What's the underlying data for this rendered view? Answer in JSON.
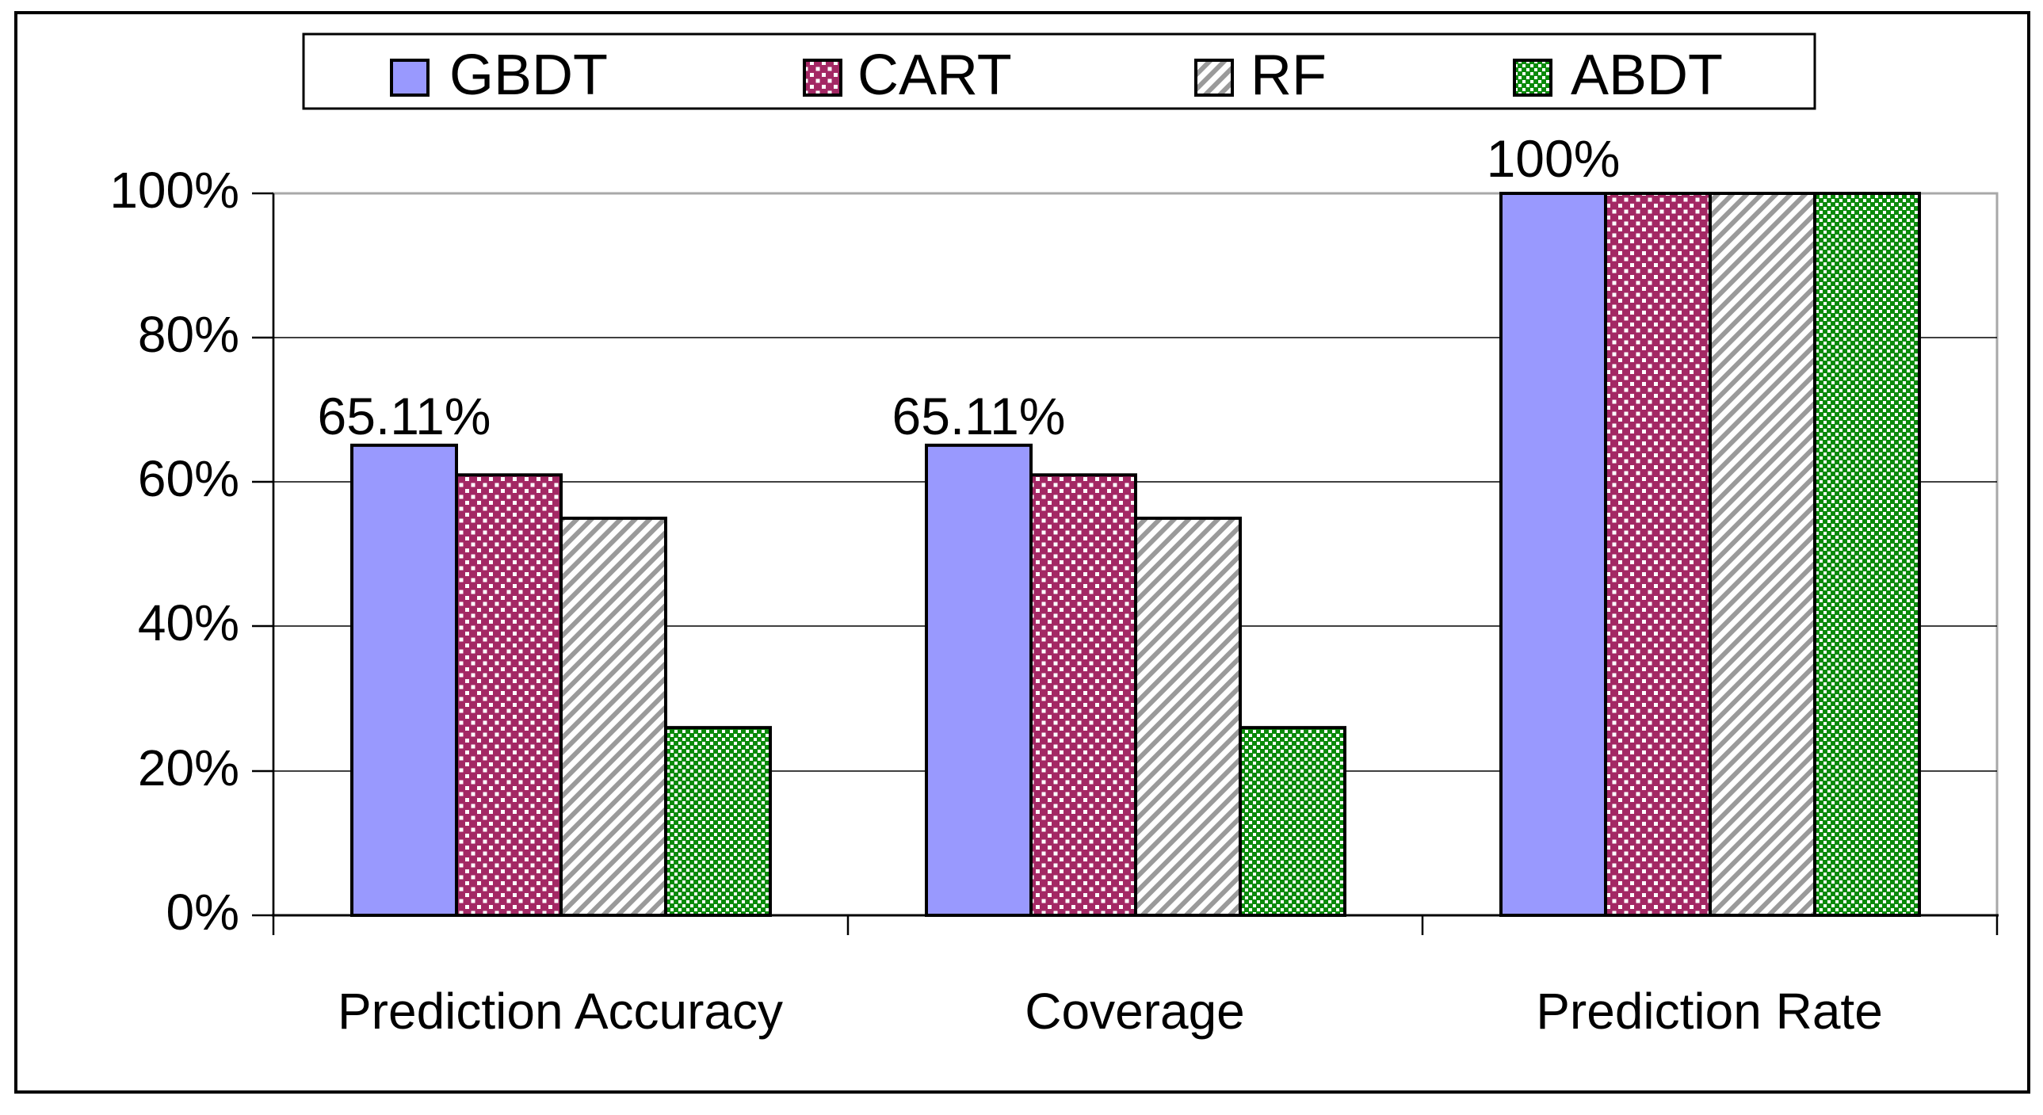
{
  "colors": {
    "gbdt": "#9999FE",
    "cart": "#A32864",
    "rf": "#9A9A9A",
    "abdt": "#0A8A0A",
    "plot_border": "#A8A8A8",
    "axis": "#000000"
  },
  "chart_data": {
    "type": "bar",
    "title": "",
    "xlabel": "",
    "ylabel": "",
    "categories": [
      "Prediction Accuracy",
      "Coverage",
      "Prediction Rate"
    ],
    "series": [
      {
        "name": "GBDT",
        "values": [
          65.11,
          65.11,
          100
        ]
      },
      {
        "name": "CART",
        "values": [
          61,
          61,
          100
        ]
      },
      {
        "name": "RF",
        "values": [
          55,
          55,
          100
        ]
      },
      {
        "name": "ABDT",
        "values": [
          26,
          26,
          100
        ]
      }
    ],
    "ylim": [
      0,
      100
    ],
    "ytick_labels": [
      "0%",
      "20%",
      "40%",
      "60%",
      "80%",
      "100%"
    ],
    "grid": "horizontal",
    "legend_position": "top",
    "annotations": [
      {
        "text": "65.11%",
        "category": "Prediction Accuracy",
        "series": "GBDT"
      },
      {
        "text": "65.11%",
        "category": "Coverage",
        "series": "GBDT"
      },
      {
        "text": "100%",
        "category": "Prediction Rate",
        "series": "GBDT"
      }
    ]
  }
}
